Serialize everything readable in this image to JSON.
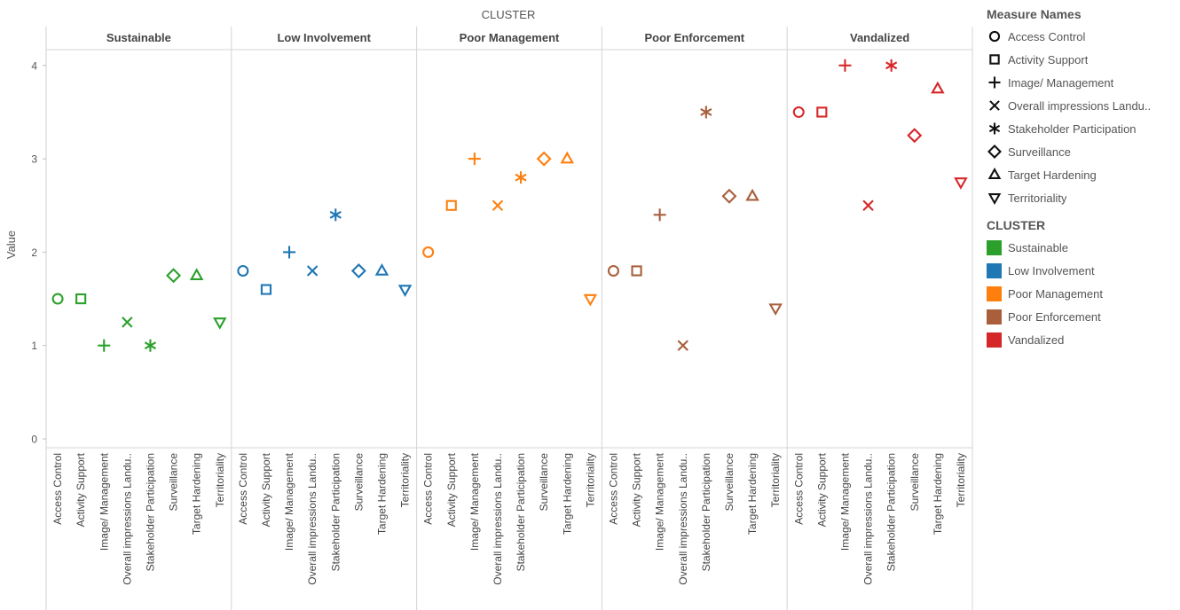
{
  "chart_data": {
    "type": "scatter",
    "title": "CLUSTER",
    "ylabel": "Value",
    "ylim": [
      0,
      4.3
    ],
    "yticks": [
      "0",
      "1",
      "2",
      "3",
      "4"
    ],
    "panels": [
      "Sustainable",
      "Low Involvement",
      "Poor Management",
      "Poor Enforcement",
      "Vandalized"
    ],
    "categories": [
      "Access Control",
      "Activity Support",
      "Image/ Management",
      "Overall impressions Landu..",
      "Stakeholder Participation",
      "Surveillance",
      "Target Hardening",
      "Territoriality"
    ],
    "shapes": [
      "circle",
      "square",
      "plus",
      "cross",
      "asterisk",
      "diamond",
      "triangle-up",
      "triangle-down"
    ],
    "series": [
      {
        "name": "Sustainable",
        "color": "#2ca02c",
        "values": [
          1.5,
          1.5,
          1.0,
          1.25,
          1.0,
          1.75,
          1.75,
          1.25
        ]
      },
      {
        "name": "Low Involvement",
        "color": "#1f77b4",
        "values": [
          1.8,
          1.6,
          2.0,
          1.8,
          2.4,
          1.8,
          1.8,
          1.6
        ]
      },
      {
        "name": "Poor Management",
        "color": "#ff7f0e",
        "values": [
          2.0,
          2.5,
          3.0,
          2.5,
          2.8,
          3.0,
          3.0,
          1.5
        ]
      },
      {
        "name": "Poor Enforcement",
        "color": "#a95f3c",
        "values": [
          1.8,
          1.8,
          2.4,
          1.0,
          3.5,
          2.6,
          2.6,
          1.4
        ]
      },
      {
        "name": "Vandalized",
        "color": "#d62728",
        "values": [
          3.5,
          3.5,
          4.0,
          2.5,
          4.0,
          3.25,
          3.75,
          2.75
        ]
      }
    ]
  },
  "legend": {
    "measure_title": "Measure Names",
    "cluster_title": "CLUSTER"
  }
}
